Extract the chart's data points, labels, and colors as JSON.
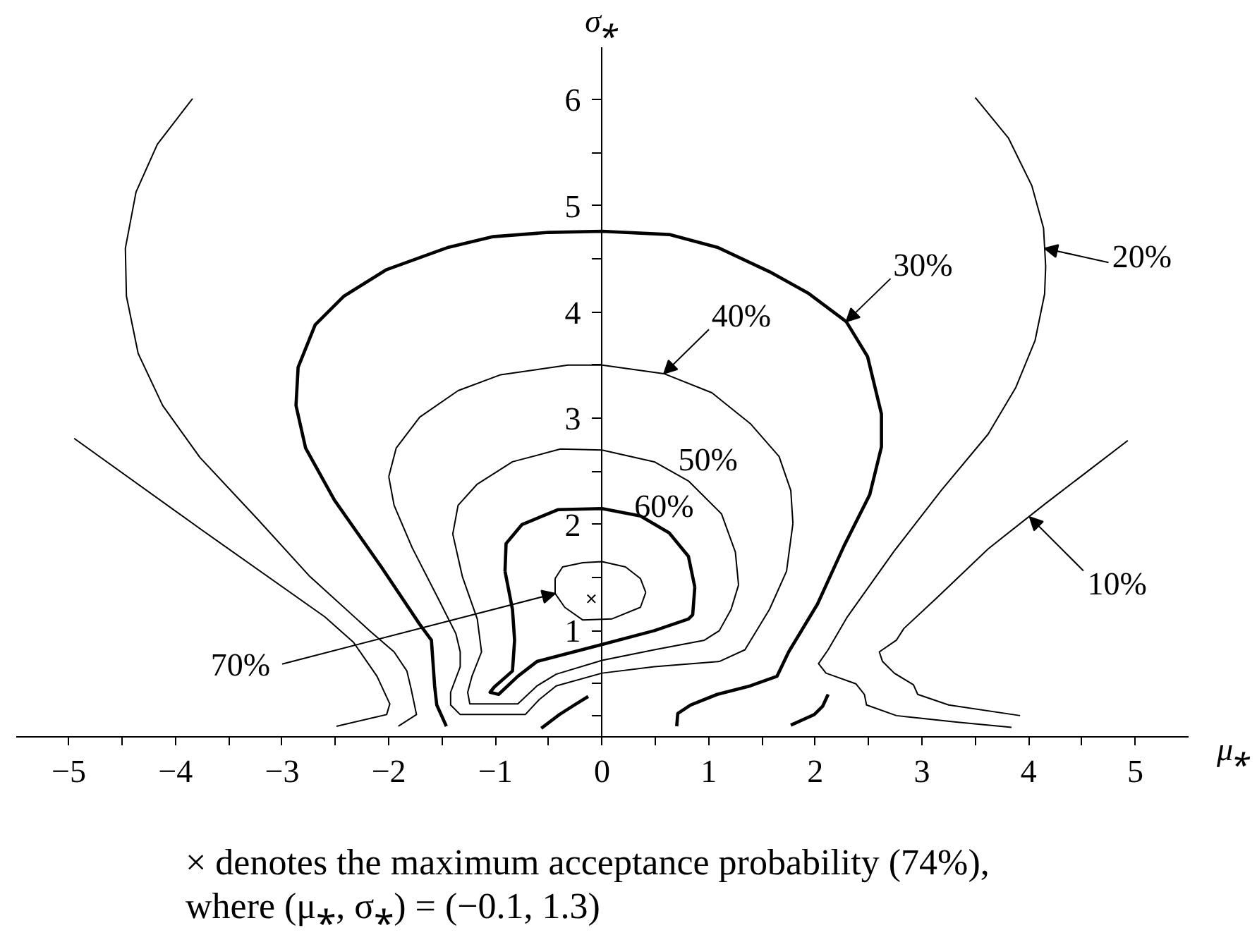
{
  "chart_data": {
    "type": "line",
    "xlabel": "μ⁎",
    "ylabel": "σ⁎",
    "xlim": [
      -5.5,
      5.5
    ],
    "ylim": [
      0,
      6.5
    ],
    "xticks": [
      {
        "value": -5,
        "label": "−5"
      },
      {
        "value": -4.5,
        "label": null
      },
      {
        "value": -4,
        "label": "−4"
      },
      {
        "value": -3.5,
        "label": null
      },
      {
        "value": -3,
        "label": "−3"
      },
      {
        "value": -2.5,
        "label": null
      },
      {
        "value": -2,
        "label": "−2"
      },
      {
        "value": -1.5,
        "label": null
      },
      {
        "value": -1,
        "label": "−1"
      },
      {
        "value": -0.5,
        "label": null
      },
      0,
      {
        "value": 0.5,
        "label": null
      },
      1,
      {
        "value": 1.5,
        "label": null
      },
      2,
      {
        "value": 2.5,
        "label": null
      },
      3,
      {
        "value": 3.5,
        "label": null
      },
      4,
      {
        "value": 4.5,
        "label": null
      },
      5
    ],
    "yticks": [
      {
        "value": 0.2,
        "label": null
      },
      {
        "value": 0.5,
        "label": null
      },
      1,
      {
        "value": 1.5,
        "label": null
      },
      2,
      {
        "value": 2.5,
        "label": null
      },
      3,
      {
        "value": 3.5,
        "label": null
      },
      4,
      {
        "value": 4.5,
        "label": null
      },
      5,
      {
        "value": 5.5,
        "label": null
      },
      6
    ],
    "series": [
      {
        "color": "#000000",
        "x": [
          -4.95,
          -3.77,
          -2.6,
          -2.33,
          -2.11,
          -1.99,
          -2.02,
          -2.49,
          null,
          4.93,
          4.15,
          3.62,
          3.14,
          2.83,
          2.76,
          2.6,
          2.63,
          2.74,
          2.92,
          2.96,
          3.25,
          3.92
        ],
        "values": [
          2.81,
          1.96,
          1.13,
          0.89,
          0.57,
          0.31,
          0.21,
          0.1,
          null,
          2.79,
          2.19,
          1.77,
          1.31,
          1.02,
          0.91,
          0.8,
          0.71,
          0.6,
          0.49,
          0.4,
          0.3,
          0.2
        ]
      },
      {
        "color": "#000000",
        "x": [
          -3.84,
          -4.17,
          -4.37,
          -4.47,
          -4.46,
          -4.35,
          -4.12,
          -3.77,
          -3.23,
          -2.74,
          -2.18,
          -1.95,
          -1.83,
          -1.79,
          -1.74,
          -1.91,
          null,
          3.5,
          3.81,
          4.03,
          4.14,
          4.16,
          4.15,
          4.06,
          3.88,
          3.62,
          3.18,
          2.74,
          2.3,
          2.12,
          2.03,
          2.1,
          2.38,
          2.46,
          2.48,
          2.76,
          3.32,
          3.84
        ],
        "values": [
          6.01,
          5.58,
          5.13,
          4.6,
          4.15,
          3.61,
          3.12,
          2.63,
          2.05,
          1.51,
          1.0,
          0.8,
          0.62,
          0.45,
          0.21,
          0.1,
          null,
          6.02,
          5.64,
          5.19,
          4.79,
          4.43,
          4.17,
          3.73,
          3.29,
          2.85,
          2.32,
          1.75,
          1.13,
          0.82,
          0.69,
          0.6,
          0.5,
          0.4,
          0.3,
          0.2,
          0.14,
          0.09
        ]
      },
      {
        "color": "#000000",
        "x": [
          -1.46,
          -1.55,
          -1.57,
          -1.6,
          -1.71,
          -2.07,
          -2.51,
          -2.78,
          -2.87,
          -2.85,
          -2.69,
          -2.42,
          -2.02,
          -1.44,
          -1.02,
          -0.5,
          0,
          0.63,
          1.08,
          1.57,
          1.93,
          2.29,
          2.49,
          2.62,
          2.62,
          2.51,
          2.27,
          2.02,
          1.75,
          1.64,
          1.39,
          1.08,
          0.83,
          0.71,
          0.7,
          null,
          -0.57,
          -0.4,
          -0.26,
          -0.13,
          null,
          1.77,
          1.99,
          2.07,
          2.12
        ],
        "values": [
          0.1,
          0.3,
          0.48,
          0.91,
          1.06,
          1.6,
          2.23,
          2.72,
          3.12,
          3.48,
          3.88,
          4.15,
          4.4,
          4.61,
          4.71,
          4.75,
          4.76,
          4.73,
          4.61,
          4.38,
          4.18,
          3.91,
          3.58,
          3.04,
          2.73,
          2.28,
          1.8,
          1.25,
          0.8,
          0.57,
          0.48,
          0.4,
          0.3,
          0.22,
          0.1,
          null,
          0.08,
          0.21,
          0.3,
          0.38,
          null,
          0.11,
          0.21,
          0.29,
          0.4
        ]
      },
      {
        "color": "#000000",
        "x": [
          -2.0,
          -1.93,
          -1.71,
          -1.35,
          -0.95,
          -0.32,
          0,
          0.58,
          1.03,
          1.39,
          1.66,
          1.77,
          1.79,
          null,
          1.79,
          1.73,
          1.57,
          1.34,
          1.1,
          0.49,
          0,
          -0.43,
          -0.59,
          -0.72,
          -1.33,
          -1.42,
          -1.42,
          -1.33,
          -1.33,
          -1.37,
          -1.53,
          -1.78,
          -1.95,
          -2.0
        ],
        "values": [
          2.45,
          2.72,
          3.01,
          3.26,
          3.41,
          3.5,
          3.5,
          3.42,
          3.24,
          2.95,
          2.64,
          2.32,
          2.01,
          null,
          2.01,
          1.56,
          1.2,
          0.82,
          0.71,
          0.66,
          0.6,
          0.48,
          0.35,
          0.21,
          0.21,
          0.3,
          0.42,
          0.66,
          0.8,
          0.97,
          1.29,
          1.78,
          2.18,
          2.45
        ]
      },
      {
        "color": "#000000",
        "x": [
          -1.4,
          -1.35,
          -1.17,
          -0.84,
          -0.39,
          0,
          0.49,
          0.81,
          1.12,
          1.25,
          1.28,
          null,
          1.28,
          1.21,
          1.1,
          0.96,
          0.49,
          0,
          -0.43,
          -0.61,
          -0.79,
          -1.24,
          -1.26,
          -1.22,
          -1.13,
          -1.17,
          -1.31,
          -1.4
        ],
        "values": [
          1.91,
          2.18,
          2.38,
          2.59,
          2.71,
          2.7,
          2.59,
          2.41,
          2.1,
          1.74,
          1.43,
          null,
          1.43,
          1.2,
          1.0,
          0.91,
          0.82,
          0.72,
          0.59,
          0.48,
          0.31,
          0.31,
          0.42,
          0.57,
          0.8,
          1.11,
          1.51,
          1.91
        ]
      },
      {
        "color": "#000000",
        "x": [
          -0.91,
          -0.9,
          -0.75,
          -0.41,
          0,
          0.36,
          0.63,
          0.81,
          0.87,
          null,
          0.87,
          0.85,
          0.81,
          0.49,
          0,
          -0.61,
          -0.79,
          -0.97,
          -1.05,
          -1.01,
          -0.84,
          -0.82,
          -0.84,
          -0.91
        ],
        "values": [
          1.56,
          1.82,
          2.0,
          2.14,
          2.15,
          2.08,
          1.92,
          1.7,
          1.41,
          null,
          1.41,
          1.15,
          1.11,
          1.0,
          0.87,
          0.71,
          0.57,
          0.4,
          0.42,
          0.47,
          0.62,
          0.91,
          1.2,
          1.56
        ]
      },
      {
        "color": "#000000",
        "x": [
          -0.44,
          -0.37,
          -0.18,
          0,
          0.22,
          0.36,
          0.41,
          null,
          0.41,
          0.36,
          0.09,
          -0.18,
          -0.35,
          -0.44,
          -0.44
        ],
        "values": [
          1.49,
          1.6,
          1.64,
          1.65,
          1.6,
          1.49,
          1.36,
          null,
          1.36,
          1.22,
          1.11,
          1.1,
          1.22,
          1.35,
          1.49
        ]
      },
      {
        "type": "scatter",
        "marker": "cross",
        "color": "#000000",
        "x": [
          -0.1
        ],
        "values": [
          1.3
        ]
      }
    ],
    "annotations": [
      {
        "text": "10%",
        "x": 4.01,
        "y": 2.07
      },
      {
        "text": "20%",
        "x": 4.15,
        "y": 4.6
      },
      {
        "text": "30%",
        "x": 2.29,
        "y": 3.91
      },
      {
        "text": "40%",
        "x": 0.58,
        "y": 3.42
      },
      {
        "text": "70%",
        "x": -0.44,
        "y": 1.35
      },
      "50%",
      "60%",
      "× denotes the maximum acceptance probability (74%),",
      "where (μ⁎, σ⁎) = (−0.1, 1.3)"
    ]
  }
}
